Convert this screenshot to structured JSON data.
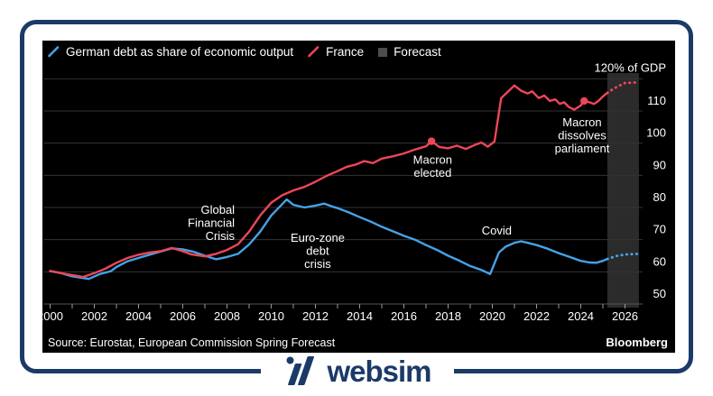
{
  "frame": {
    "accent_navy": "#1b3a67",
    "footer_brand": "websim"
  },
  "chart": {
    "legend": [
      {
        "label": "German debt as share of economic output",
        "color": "#45a2e8",
        "marker": "line"
      },
      {
        "label": "France",
        "color": "#ee4659",
        "marker": "line"
      },
      {
        "label": "Forecast",
        "color": "#4d4d4d",
        "marker": "square"
      }
    ],
    "source": "Source: Eurostat, European Commission Spring Forecast",
    "brand": "Bloomberg"
  },
  "chart_data": {
    "type": "line",
    "title": "",
    "xlabel": "",
    "ylabel": "% of GDP",
    "axis_top_label": "120% of GDP",
    "y_ticks": [
      110,
      100,
      90,
      80,
      70,
      60,
      50
    ],
    "ylim": [
      50,
      120
    ],
    "x_ticks_labeled": [
      2000,
      2002,
      2004,
      2006,
      2008,
      2010,
      2012,
      2014,
      2016,
      2018,
      2020,
      2022,
      2024,
      2026
    ],
    "xlim": [
      2000,
      2026.6
    ],
    "grid": true,
    "legend_position": "top-left",
    "forecast_band": {
      "start": 2025.2,
      "end": 2026.63
    },
    "series": [
      {
        "name": "German debt as share of economic output",
        "color": "#45a2e8",
        "points": [
          [
            2000,
            60.2
          ],
          [
            2000.5,
            59.6
          ],
          [
            2001,
            58.6
          ],
          [
            2001.75,
            57.8
          ],
          [
            2002.25,
            59.3
          ],
          [
            2002.75,
            60.2
          ],
          [
            2003,
            61.5
          ],
          [
            2003.5,
            63.3
          ],
          [
            2004,
            64.3
          ],
          [
            2004.5,
            65.3
          ],
          [
            2005,
            66.3
          ],
          [
            2005.5,
            67.3
          ],
          [
            2006,
            67.0
          ],
          [
            2006.5,
            66.2
          ],
          [
            2007,
            65.0
          ],
          [
            2007.5,
            63.9
          ],
          [
            2008,
            64.6
          ],
          [
            2008.5,
            65.6
          ],
          [
            2009,
            68.5
          ],
          [
            2009.5,
            72.5
          ],
          [
            2010,
            77.5
          ],
          [
            2010.7,
            82.5
          ],
          [
            2011,
            80.8
          ],
          [
            2011.5,
            80.0
          ],
          [
            2012,
            80.6
          ],
          [
            2012.4,
            81.2
          ],
          [
            2012.8,
            80.2
          ],
          [
            2013,
            79.8
          ],
          [
            2013.5,
            78.5
          ],
          [
            2014,
            77.0
          ],
          [
            2014.5,
            75.6
          ],
          [
            2015,
            74.0
          ],
          [
            2015.5,
            72.6
          ],
          [
            2016,
            71.2
          ],
          [
            2016.5,
            70.0
          ],
          [
            2017,
            68.3
          ],
          [
            2017.5,
            66.8
          ],
          [
            2018,
            65.0
          ],
          [
            2018.5,
            63.5
          ],
          [
            2019,
            61.8
          ],
          [
            2019.5,
            60.6
          ],
          [
            2019.9,
            59.3
          ],
          [
            2020.3,
            66.0
          ],
          [
            2020.6,
            67.8
          ],
          [
            2021,
            69.0
          ],
          [
            2021.3,
            69.5
          ],
          [
            2021.6,
            69.0
          ],
          [
            2022,
            68.3
          ],
          [
            2022.5,
            67.2
          ],
          [
            2023,
            65.8
          ],
          [
            2023.5,
            64.6
          ],
          [
            2024,
            63.4
          ],
          [
            2024.4,
            62.9
          ],
          [
            2024.7,
            62.8
          ],
          [
            2025,
            63.4
          ],
          [
            2025.2,
            64.0
          ]
        ],
        "forecast_points": [
          [
            2025.2,
            64.0
          ],
          [
            2025.6,
            64.9
          ],
          [
            2026,
            65.4
          ],
          [
            2026.6,
            65.6
          ]
        ]
      },
      {
        "name": "France",
        "color": "#ee4659",
        "points": [
          [
            2000,
            60.3
          ],
          [
            2000.5,
            59.6
          ],
          [
            2001,
            59.0
          ],
          [
            2001.5,
            58.4
          ],
          [
            2002,
            59.6
          ],
          [
            2002.5,
            61.0
          ],
          [
            2003,
            62.8
          ],
          [
            2003.5,
            64.3
          ],
          [
            2004,
            65.3
          ],
          [
            2004.5,
            66.0
          ],
          [
            2005,
            66.4
          ],
          [
            2005.5,
            67.4
          ],
          [
            2006,
            66.4
          ],
          [
            2006.4,
            65.4
          ],
          [
            2007,
            64.8
          ],
          [
            2007.5,
            65.6
          ],
          [
            2008,
            66.8
          ],
          [
            2008.5,
            68.6
          ],
          [
            2009,
            72.5
          ],
          [
            2009.5,
            77.5
          ],
          [
            2010,
            81.5
          ],
          [
            2010.5,
            83.8
          ],
          [
            2011,
            85.3
          ],
          [
            2011.5,
            86.4
          ],
          [
            2012,
            88.0
          ],
          [
            2012.5,
            89.8
          ],
          [
            2013,
            91.3
          ],
          [
            2013.4,
            92.6
          ],
          [
            2013.8,
            93.3
          ],
          [
            2014.2,
            94.4
          ],
          [
            2014.6,
            93.8
          ],
          [
            2015,
            95.2
          ],
          [
            2015.5,
            95.9
          ],
          [
            2016,
            96.8
          ],
          [
            2016.5,
            98.0
          ],
          [
            2017,
            99.0
          ],
          [
            2017.25,
            100.6
          ],
          [
            2017.6,
            98.8
          ],
          [
            2018,
            98.4
          ],
          [
            2018.4,
            99.2
          ],
          [
            2018.8,
            98.2
          ],
          [
            2019.2,
            99.4
          ],
          [
            2019.5,
            100.2
          ],
          [
            2019.8,
            98.9
          ],
          [
            2020.1,
            100.5
          ],
          [
            2020.4,
            114.0
          ],
          [
            2021,
            117.9
          ],
          [
            2021.3,
            116.3
          ],
          [
            2021.6,
            115.4
          ],
          [
            2021.8,
            116.1
          ],
          [
            2022.1,
            114.0
          ],
          [
            2022.35,
            114.8
          ],
          [
            2022.6,
            113.1
          ],
          [
            2022.85,
            113.6
          ],
          [
            2023.05,
            112.2
          ],
          [
            2023.25,
            112.7
          ],
          [
            2023.45,
            111.3
          ],
          [
            2023.7,
            110.4
          ],
          [
            2024,
            111.7
          ],
          [
            2024.15,
            113.1
          ],
          [
            2024.4,
            112.7
          ],
          [
            2024.6,
            112.2
          ],
          [
            2024.8,
            113.1
          ],
          [
            2025,
            114.5
          ],
          [
            2025.2,
            115.6
          ]
        ],
        "forecast_points": [
          [
            2025.2,
            115.6
          ],
          [
            2025.5,
            117.0
          ],
          [
            2026,
            118.7
          ],
          [
            2026.6,
            118.9
          ]
        ]
      }
    ],
    "markers": [
      {
        "series": "France",
        "year": 2017.25,
        "value": 100.6
      },
      {
        "series": "France",
        "year": 2024.15,
        "value": 113.1
      }
    ],
    "annotations": [
      {
        "lines": [
          "Global",
          "Financial",
          "Crisis"
        ],
        "year": 2008.35,
        "value": 78.0,
        "align": "end"
      },
      {
        "lines": [
          "Euro-zone",
          "debt",
          "crisis"
        ],
        "year": 2012.1,
        "value": 69.3,
        "align": "middle"
      },
      {
        "lines": [
          "Macron",
          "elected"
        ],
        "year": 2017.3,
        "value": 93.6,
        "align": "middle"
      },
      {
        "lines": [
          "Covid"
        ],
        "year": 2020.2,
        "value": 71.6,
        "align": "middle"
      },
      {
        "lines": [
          "Macron",
          "dissolves",
          "parliament"
        ],
        "year": 2024.06,
        "value": 105.2,
        "align": "middle"
      }
    ]
  }
}
